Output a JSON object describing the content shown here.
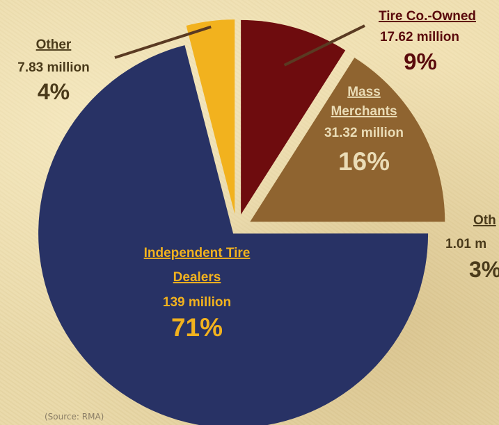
{
  "chart_data": {
    "type": "pie",
    "source": "(Source: RMA)",
    "slices": [
      {
        "label": "Tire Co.-Owned",
        "value_text": "17.62 million",
        "pct_text": "9%",
        "value": 17.62,
        "pct": 9,
        "color": "#6e0c0e"
      },
      {
        "label": "Mass Merchants",
        "label_lines": [
          "Mass",
          "Merchants"
        ],
        "value_text": "31.32 million",
        "pct_text": "16%",
        "value": 31.32,
        "pct": 16,
        "color": "#8f6430"
      },
      {
        "label": "Independent Tire Dealers",
        "label_lines": [
          "Independent Tire",
          "Dealers"
        ],
        "value_text": "139 million",
        "pct_text": "71%",
        "value": 139,
        "pct": 71,
        "color": "#283265"
      },
      {
        "label": "Other",
        "value_text": "7.83 million",
        "pct_text": "4%",
        "value": 7.83,
        "pct": 4,
        "color": "#f2b21e"
      }
    ],
    "cut_off_labels": [
      {
        "text": "Oth"
      },
      {
        "text": "1.01 m"
      },
      {
        "text": "3%"
      }
    ]
  }
}
